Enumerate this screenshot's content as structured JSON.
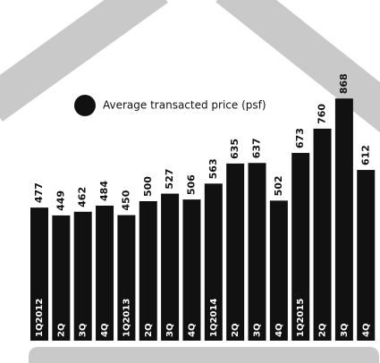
{
  "chart_data": {
    "type": "bar",
    "categories": [
      "1Q2012",
      "2Q",
      "3Q",
      "4Q",
      "1Q2013",
      "2Q",
      "3Q",
      "4Q",
      "1Q2014",
      "2Q",
      "3Q",
      "4Q",
      "1Q2015",
      "2Q",
      "3Q",
      "4Q"
    ],
    "series": [
      {
        "name": "Average transacted price (psf)",
        "color": "#111111",
        "values": [
          477,
          449,
          462,
          484,
          450,
          500,
          527,
          506,
          563,
          635,
          637,
          502,
          673,
          760,
          868,
          612
        ]
      }
    ]
  }
}
